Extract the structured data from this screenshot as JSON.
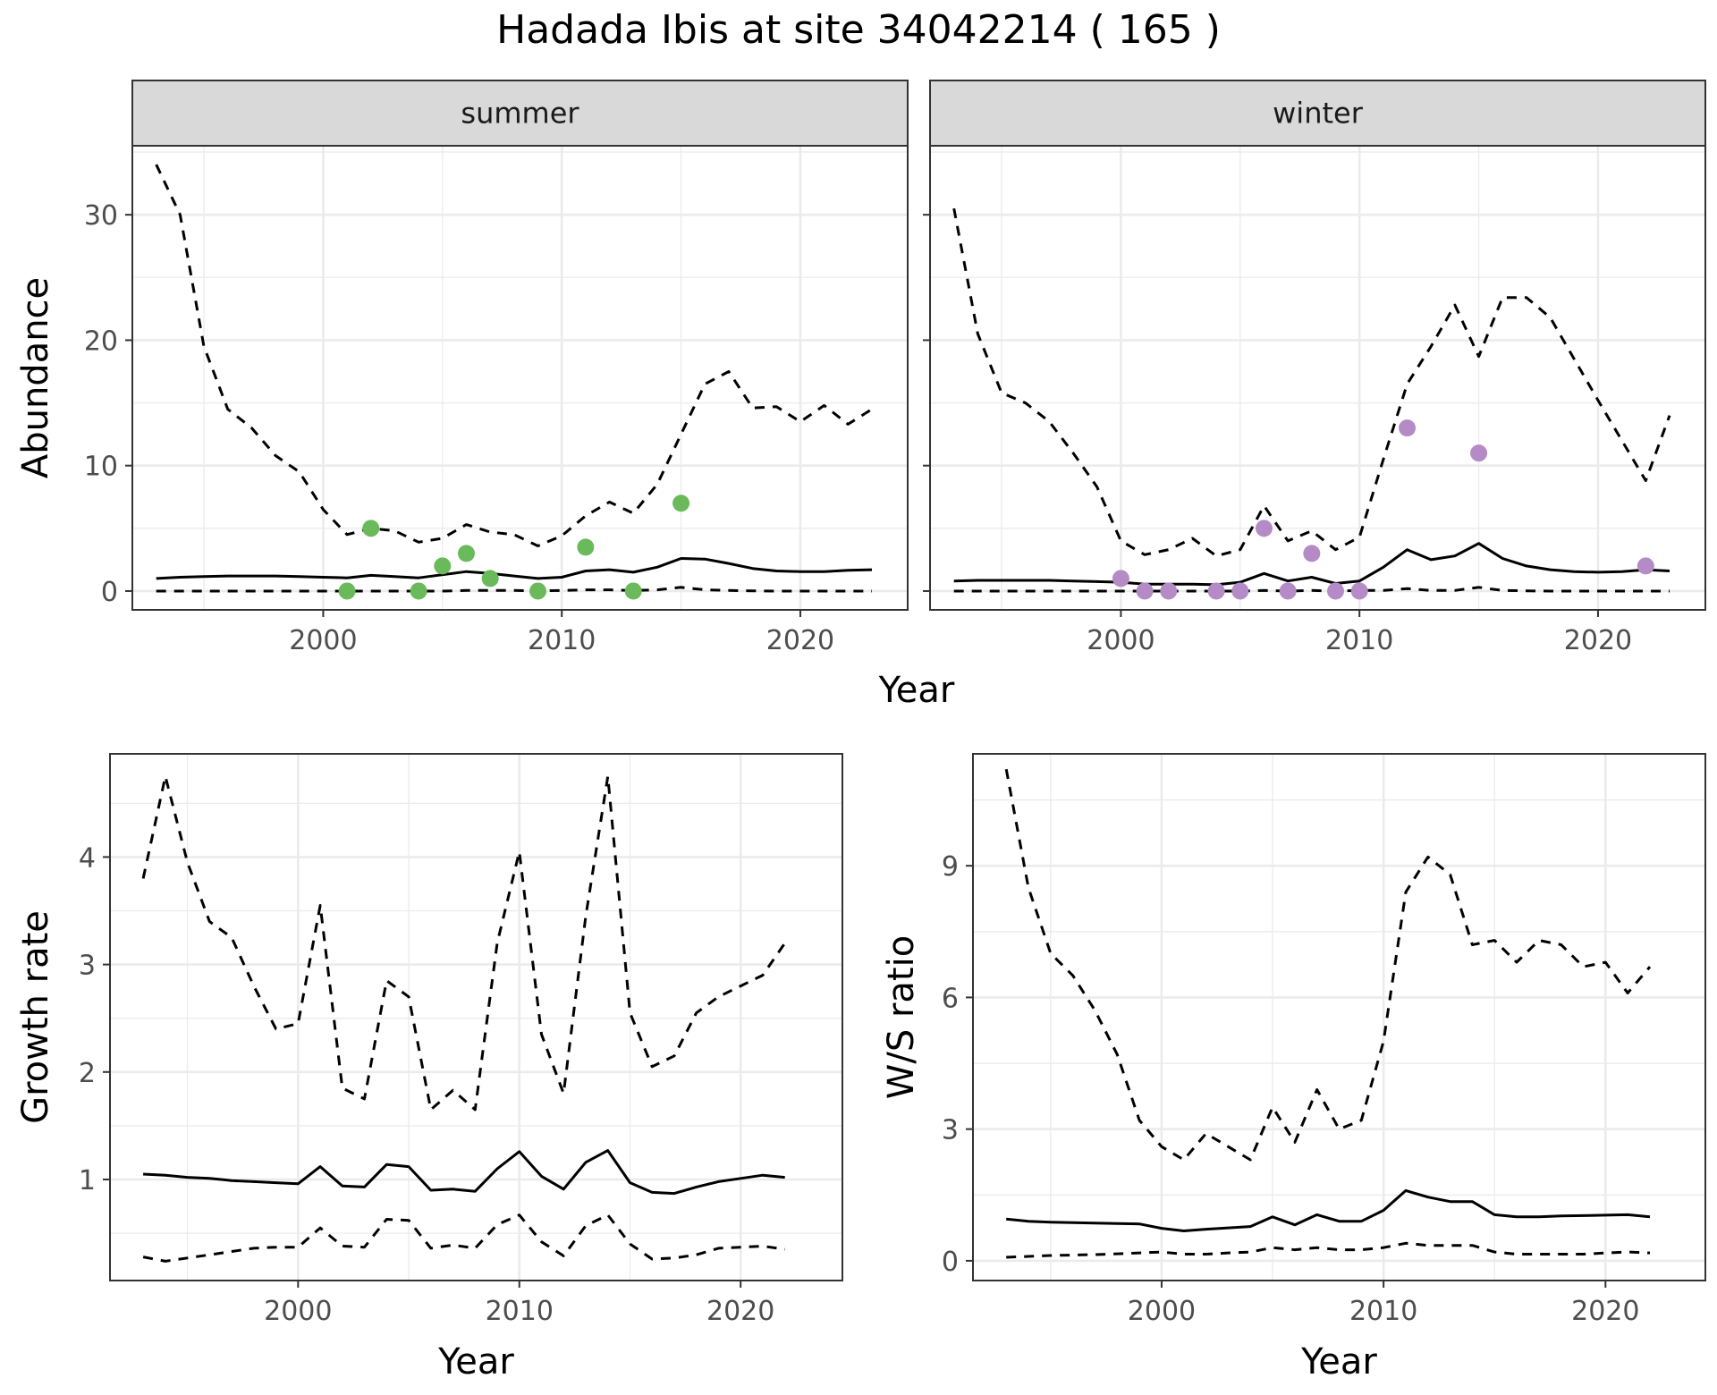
{
  "title": "Hadada Ibis at site 34042214 ( 165 )",
  "colors": {
    "summer_points": "#6aba5c",
    "winter_points": "#b48bc6",
    "lines": "#000000",
    "strip_fill": "#d9d9d9",
    "grid": "#ebebeb"
  },
  "chart_data": [
    {
      "type": "line",
      "panel": "summer",
      "strip_label": "summer",
      "xlabel": "Year",
      "ylabel": "Abundance",
      "xlim": [
        1992,
        2024.5
      ],
      "ylim": [
        -1.5,
        35.5
      ],
      "xticks": [
        2000,
        2010,
        2020
      ],
      "yticks": [
        0,
        10,
        20,
        30
      ],
      "grid": true,
      "x": [
        1993,
        1994,
        1995,
        1996,
        1997,
        1998,
        1999,
        2000,
        2001,
        2002,
        2003,
        2004,
        2005,
        2006,
        2007,
        2008,
        2009,
        2010,
        2011,
        2012,
        2013,
        2014,
        2015,
        2016,
        2017,
        2018,
        2019,
        2020,
        2021,
        2022,
        2023
      ],
      "series": [
        {
          "style": "solid",
          "values": [
            1.0,
            1.1,
            1.15,
            1.2,
            1.2,
            1.2,
            1.15,
            1.1,
            1.05,
            1.25,
            1.15,
            1.05,
            1.3,
            1.55,
            1.4,
            1.2,
            1.0,
            1.1,
            1.6,
            1.7,
            1.5,
            1.9,
            2.6,
            2.55,
            2.2,
            1.8,
            1.6,
            1.55,
            1.55,
            1.65,
            1.7
          ]
        },
        {
          "style": "dashed",
          "values": [
            34,
            30,
            19.5,
            14.5,
            13,
            10.8,
            9.5,
            6.5,
            4.5,
            5.0,
            4.8,
            3.9,
            4.2,
            5.3,
            4.7,
            4.5,
            3.6,
            4.4,
            6.0,
            7.1,
            6.2,
            8.5,
            12.5,
            16.5,
            17.5,
            14.6,
            14.7,
            13.5,
            14.8,
            13.3,
            14.5
          ]
        },
        {
          "style": "dashed",
          "values": [
            0,
            0,
            0,
            0,
            0,
            0,
            0,
            0,
            0,
            0,
            0,
            0,
            0,
            0.05,
            0.05,
            0.05,
            0.02,
            0.05,
            0.1,
            0.1,
            0.05,
            0.1,
            0.3,
            0.1,
            0.05,
            0.02,
            0,
            0,
            0,
            0,
            0
          ]
        }
      ],
      "points": {
        "x": [
          2001,
          2002,
          2004,
          2005,
          2006,
          2007,
          2009,
          2011,
          2013,
          2015
        ],
        "y": [
          0,
          5,
          0,
          2,
          3,
          1,
          0,
          3.5,
          0,
          7
        ]
      }
    },
    {
      "type": "line",
      "panel": "winter",
      "strip_label": "winter",
      "xlabel": "Year",
      "ylabel": "Abundance",
      "xlim": [
        1992,
        2024.5
      ],
      "ylim": [
        -1.5,
        35.5
      ],
      "xticks": [
        2000,
        2010,
        2020
      ],
      "yticks": [
        0,
        10,
        20,
        30
      ],
      "grid": true,
      "x": [
        1993,
        1994,
        1995,
        1996,
        1997,
        1998,
        1999,
        2000,
        2001,
        2002,
        2003,
        2004,
        2005,
        2006,
        2007,
        2008,
        2009,
        2010,
        2011,
        2012,
        2013,
        2014,
        2015,
        2016,
        2017,
        2018,
        2019,
        2020,
        2021,
        2022,
        2023
      ],
      "series": [
        {
          "style": "solid",
          "values": [
            0.8,
            0.85,
            0.85,
            0.85,
            0.85,
            0.8,
            0.75,
            0.7,
            0.55,
            0.55,
            0.55,
            0.5,
            0.7,
            1.4,
            0.8,
            1.1,
            0.6,
            0.8,
            1.9,
            3.3,
            2.5,
            2.8,
            3.8,
            2.6,
            2.0,
            1.7,
            1.55,
            1.5,
            1.55,
            1.7,
            1.6
          ]
        },
        {
          "style": "dashed",
          "values": [
            30.5,
            20.5,
            15.8,
            15,
            13.5,
            11,
            8.3,
            4,
            2.9,
            3.3,
            4.2,
            2.8,
            3.3,
            6.8,
            4,
            4.8,
            3.3,
            4.3,
            10.5,
            16.5,
            19.5,
            22.8,
            18.7,
            23.4,
            23.4,
            21.8,
            18.5,
            15.2,
            12,
            8.8,
            14
          ]
        },
        {
          "style": "dashed",
          "values": [
            0,
            0,
            0,
            0,
            0,
            0,
            0,
            0,
            0,
            0,
            0,
            0,
            0,
            0.05,
            0,
            0.05,
            0,
            0.05,
            0.05,
            0.2,
            0.05,
            0.05,
            0.3,
            0.05,
            0.02,
            0,
            0,
            0,
            0,
            0,
            0
          ]
        }
      ],
      "points": {
        "x": [
          2000,
          2001,
          2002,
          2004,
          2005,
          2006,
          2007,
          2008,
          2009,
          2010,
          2012,
          2015,
          2022
        ],
        "y": [
          1,
          0,
          0,
          0,
          0,
          5,
          0,
          3,
          0,
          0,
          13,
          11,
          2
        ]
      }
    },
    {
      "type": "line",
      "panel": "growth",
      "xlabel": "Year",
      "ylabel": "Growth rate",
      "xlim": [
        1991.5,
        2024.6
      ],
      "ylim": [
        0.06,
        4.96
      ],
      "xticks": [
        2000,
        2010,
        2020
      ],
      "yticks": [
        1,
        2,
        3,
        4
      ],
      "grid": true,
      "x": [
        1993,
        1994,
        1995,
        1996,
        1997,
        1998,
        1999,
        2000,
        2001,
        2002,
        2003,
        2004,
        2005,
        2006,
        2007,
        2008,
        2009,
        2010,
        2011,
        2012,
        2013,
        2014,
        2015,
        2016,
        2017,
        2018,
        2019,
        2020,
        2021,
        2022
      ],
      "series": [
        {
          "style": "solid",
          "values": [
            1.05,
            1.04,
            1.02,
            1.01,
            0.99,
            0.98,
            0.97,
            0.96,
            1.12,
            0.94,
            0.93,
            1.14,
            1.12,
            0.9,
            0.91,
            0.89,
            1.1,
            1.26,
            1.03,
            0.91,
            1.16,
            1.27,
            0.97,
            0.88,
            0.87,
            0.93,
            0.98,
            1.01,
            1.04,
            1.02
          ]
        },
        {
          "style": "dashed",
          "values": [
            3.8,
            4.75,
            3.95,
            3.4,
            3.25,
            2.8,
            2.4,
            2.45,
            3.55,
            1.85,
            1.75,
            2.85,
            2.7,
            1.65,
            1.83,
            1.65,
            3.2,
            4.05,
            2.35,
            1.8,
            3.45,
            4.75,
            2.55,
            2.05,
            2.15,
            2.55,
            2.7,
            2.8,
            2.9,
            3.2
          ]
        },
        {
          "style": "dashed",
          "values": [
            0.28,
            0.24,
            0.27,
            0.3,
            0.33,
            0.36,
            0.37,
            0.37,
            0.55,
            0.38,
            0.37,
            0.63,
            0.62,
            0.36,
            0.39,
            0.36,
            0.58,
            0.67,
            0.42,
            0.29,
            0.57,
            0.67,
            0.4,
            0.26,
            0.27,
            0.3,
            0.36,
            0.37,
            0.38,
            0.35
          ]
        }
      ]
    },
    {
      "type": "line",
      "panel": "ws_ratio",
      "xlabel": "Year",
      "ylabel": "W/S ratio",
      "xlim": [
        1991.5,
        2024.5
      ],
      "ylim": [
        -0.45,
        11.55
      ],
      "xticks": [
        2000,
        2010,
        2020
      ],
      "yticks": [
        0,
        3,
        6,
        9
      ],
      "grid": true,
      "x": [
        1993,
        1994,
        1995,
        1996,
        1997,
        1998,
        1999,
        2000,
        2001,
        2002,
        2003,
        2004,
        2005,
        2006,
        2007,
        2008,
        2009,
        2010,
        2011,
        2012,
        2013,
        2014,
        2015,
        2016,
        2017,
        2018,
        2019,
        2020,
        2021,
        2022
      ],
      "series": [
        {
          "style": "solid",
          "values": [
            0.95,
            0.9,
            0.88,
            0.87,
            0.86,
            0.85,
            0.84,
            0.74,
            0.68,
            0.72,
            0.75,
            0.78,
            1.0,
            0.82,
            1.05,
            0.9,
            0.9,
            1.15,
            1.6,
            1.45,
            1.35,
            1.35,
            1.05,
            1.0,
            1.0,
            1.02,
            1.03,
            1.04,
            1.05,
            1.0
          ]
        },
        {
          "style": "dashed",
          "values": [
            11.2,
            8.5,
            7.0,
            6.5,
            5.7,
            4.7,
            3.2,
            2.6,
            2.3,
            2.9,
            2.6,
            2.3,
            3.5,
            2.7,
            3.9,
            3.0,
            3.2,
            5.0,
            8.4,
            9.2,
            8.8,
            7.2,
            7.3,
            6.8,
            7.3,
            7.2,
            6.7,
            6.8,
            6.1,
            6.7
          ]
        },
        {
          "style": "dashed",
          "values": [
            0.08,
            0.1,
            0.12,
            0.13,
            0.14,
            0.16,
            0.18,
            0.2,
            0.15,
            0.15,
            0.18,
            0.2,
            0.3,
            0.25,
            0.3,
            0.25,
            0.25,
            0.3,
            0.4,
            0.35,
            0.35,
            0.35,
            0.2,
            0.15,
            0.15,
            0.15,
            0.15,
            0.18,
            0.2,
            0.18
          ]
        }
      ]
    }
  ]
}
